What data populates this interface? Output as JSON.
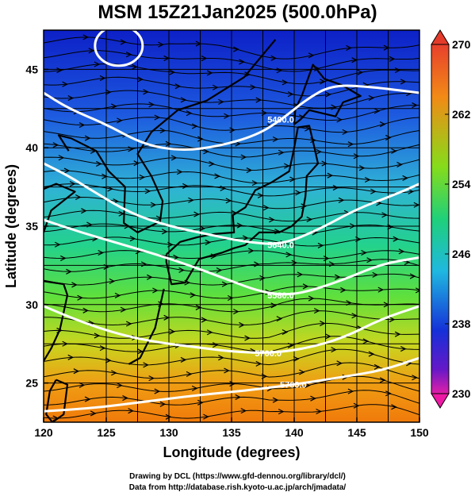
{
  "title": "MSM 15Z21Jan2025 (500.0hPa)",
  "xlabel": "Longitude (degrees)",
  "ylabel": "Latitude  (degrees)",
  "x_ticks": [
    "120",
    "125",
    "130",
    "135",
    "140",
    "145",
    "150"
  ],
  "y_ticks": [
    "25",
    "30",
    "35",
    "40",
    "45"
  ],
  "colorbar_ticks": [
    "270",
    "262",
    "254",
    "246",
    "238",
    "230"
  ],
  "contour_labels": [
    "5400.0",
    "5580.0",
    "5640.0",
    "5700.0",
    "5760.0"
  ],
  "footer": {
    "line1": "Drawing by DCL (https://www.gfd-dennou.org/library/dcl/)",
    "line2": "Data from http://database.rish.kyoto-u.ac.jp/arch/jmadata/"
  },
  "colors": {
    "cold": "#0b1fc8",
    "mid": "#17d36b",
    "warm": "#f08b0a",
    "contour": "#ffffff",
    "colorbar_max_arrow": "#e53b2a",
    "colorbar_min_arrow": "#ee1aa5"
  },
  "chart_data": {
    "type": "heatmap",
    "variable": "temperature (K) with geopotential height contours and wind streamlines",
    "xlim": [
      120,
      150
    ],
    "ylim": [
      22.5,
      47.5
    ],
    "colorbar_range": [
      230,
      270
    ],
    "contours": [
      {
        "label": "5400.0",
        "points": [
          [
            120,
            43.5
          ],
          [
            122,
            42.5
          ],
          [
            125,
            41.5
          ],
          [
            128,
            40.2
          ],
          [
            131,
            39.8
          ],
          [
            134,
            40.1
          ],
          [
            137,
            40.8
          ],
          [
            139,
            41.8
          ],
          [
            141,
            43.1
          ],
          [
            143,
            44.0
          ],
          [
            146,
            43.9
          ],
          [
            150,
            43.5
          ]
        ]
      },
      {
        "label": "5580.0",
        "points": [
          [
            120,
            35.4
          ],
          [
            123,
            34.6
          ],
          [
            126,
            33.9
          ],
          [
            129,
            33.2
          ],
          [
            132,
            32.4
          ],
          [
            135,
            31.5
          ],
          [
            137,
            30.9
          ],
          [
            139,
            30.6
          ],
          [
            141,
            30.8
          ],
          [
            144,
            31.6
          ],
          [
            147,
            32.6
          ],
          [
            150,
            33.0
          ]
        ]
      },
      {
        "label": "5640.0",
        "points": [
          [
            120,
            39.0
          ],
          [
            122,
            38.2
          ],
          [
            124,
            37.2
          ],
          [
            127,
            35.8
          ],
          [
            130,
            35.0
          ],
          [
            133,
            34.5
          ],
          [
            136,
            34.0
          ],
          [
            139,
            33.8
          ],
          [
            142,
            34.8
          ],
          [
            145,
            36.1
          ],
          [
            148,
            37.0
          ],
          [
            150,
            37.7
          ]
        ]
      },
      {
        "label": "5700.0",
        "points": [
          [
            120,
            29.9
          ],
          [
            123,
            28.9
          ],
          [
            126,
            28.1
          ],
          [
            129,
            27.6
          ],
          [
            132,
            27.3
          ],
          [
            135,
            27.0
          ],
          [
            138,
            26.9
          ],
          [
            141,
            27.2
          ],
          [
            144,
            27.9
          ],
          [
            147,
            29.1
          ],
          [
            150,
            29.9
          ]
        ]
      },
      {
        "label": "5760.0",
        "points": [
          [
            120,
            23.2
          ],
          [
            124,
            23.4
          ],
          [
            128,
            23.8
          ],
          [
            132,
            24.2
          ],
          [
            136,
            24.5
          ],
          [
            140,
            24.9
          ],
          [
            144,
            25.4
          ],
          [
            147,
            25.8
          ],
          [
            150,
            26.6
          ]
        ]
      }
    ],
    "closed_contour_center": [
      126,
      46.5
    ]
  }
}
